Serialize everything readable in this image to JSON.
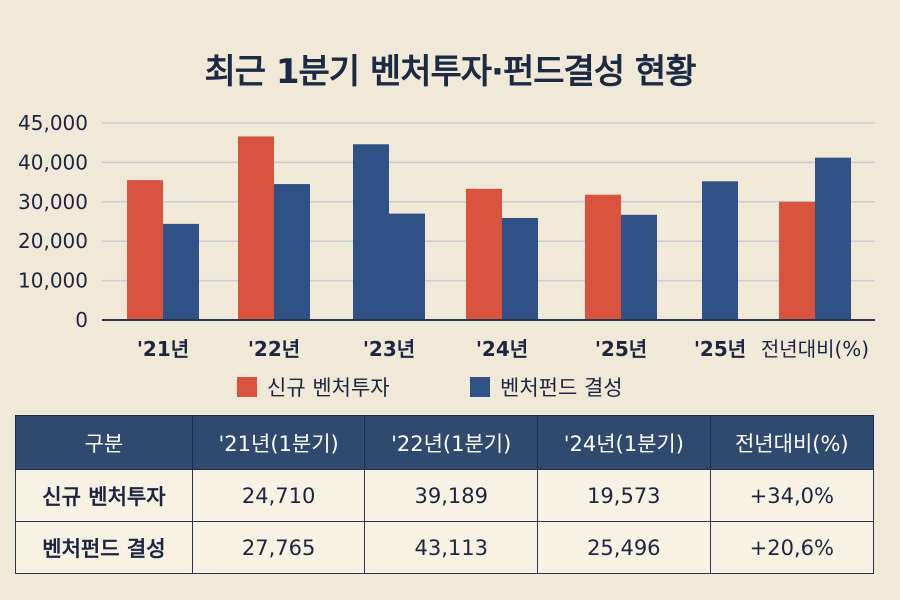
{
  "title": "최근 1분기 벤처투자·펀드결성 현황",
  "colors": {
    "red": "#d9533f",
    "blue": "#2f5185",
    "background": "#f1e9d8",
    "grid": "#c9cdd6",
    "table_header": "#2f4a6e"
  },
  "chart_data": {
    "type": "bar",
    "categories": [
      "'21년",
      "'22년",
      "'23년",
      "'24년",
      "'25년",
      "'25년",
      "전년대비(%)"
    ],
    "yticks": [
      0,
      10000,
      20000,
      30000,
      40000,
      45000
    ],
    "ytick_labels": [
      "0",
      "10,000",
      "20,000",
      "30,000",
      "40,000",
      "45,000"
    ],
    "grid": true,
    "legend_placement": "bottom",
    "series": [
      {
        "name": "신규 벤처투자",
        "color": "#d9533f",
        "values": [
          35500,
          43300,
          42300,
          33300,
          31800,
          null,
          30000
        ],
        "point_colors": [
          null,
          null,
          "#2f5185",
          null,
          null,
          null,
          null
        ]
      },
      {
        "name": "벤처펀드 결성",
        "color": "#2f5185",
        "values": [
          24400,
          34500,
          27000,
          25900,
          26700,
          35200,
          40600
        ]
      }
    ]
  },
  "legend": [
    {
      "label": "신규 벤처투자",
      "color": "#d9533f"
    },
    {
      "label": "벤처펀드 결성",
      "color": "#2f5185"
    }
  ],
  "table": {
    "headers": [
      "구분",
      "'21년(1분기)",
      "'22년(1분기)",
      "'24년(1분기)",
      "전년대비(%)"
    ],
    "rows": [
      [
        "신규 벤처투자",
        "24,710",
        "39,189",
        "19,573",
        "+34,0%"
      ],
      [
        "벤처펀드 결성",
        "27,765",
        "43,113",
        "25,496",
        "+20,6%"
      ]
    ]
  }
}
